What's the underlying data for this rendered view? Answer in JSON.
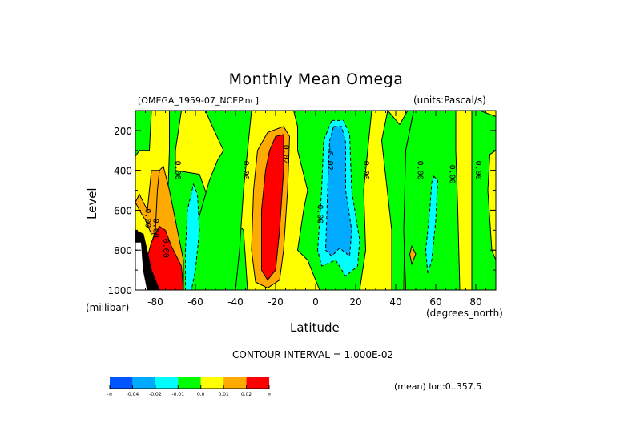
{
  "chart_data": {
    "type": "heatmap",
    "title": "Monthly Mean Omega",
    "subtitle_left": "[OMEGA_1959-07_NCEP.nc]",
    "subtitle_right": "(units:Pascal/s)",
    "xlabel": "Latitude",
    "xunit": "(degrees_north)",
    "ylabel": "Level",
    "yunit": "(millibar)",
    "xlim": [
      -90,
      90
    ],
    "ylim": [
      1000,
      100
    ],
    "x_ticks": [
      -80,
      -60,
      -40,
      -20,
      0,
      20,
      40,
      60,
      80
    ],
    "x_tick_labels": [
      "-80",
      "-60",
      "-40",
      "-20",
      "0",
      "20",
      "40",
      "60",
      "80"
    ],
    "y_ticks": [
      200,
      400,
      600,
      800,
      1000
    ],
    "y_tick_labels": [
      "200",
      "400",
      "600",
      "800",
      "1000"
    ],
    "contour_interval_text": "CONTOUR INTERVAL = 1.000E-02",
    "footnote": "(mean) lon:0..357.5",
    "contour_labels": [
      {
        "text": "0.00",
        "lat": -70,
        "level": 400
      },
      {
        "text": "0.00",
        "lat": -36,
        "level": 400
      },
      {
        "text": "0.02",
        "lat": -16,
        "level": 320
      },
      {
        "text": "-0.02",
        "lat": 6,
        "level": 340
      },
      {
        "text": "0.00",
        "lat": 24,
        "level": 400
      },
      {
        "text": "0.00",
        "lat": 1,
        "level": 620
      },
      {
        "text": "0.00",
        "lat": -85,
        "level": 640
      },
      {
        "text": "0.00",
        "lat": -81,
        "level": 690
      },
      {
        "text": "0.00",
        "lat": -76,
        "level": 790
      },
      {
        "text": "0.00",
        "lat": 51,
        "level": 400
      },
      {
        "text": "0.00",
        "lat": 67,
        "level": 420
      },
      {
        "text": "0.00",
        "lat": 80,
        "level": 400
      }
    ],
    "features": [
      {
        "name": "southern-descent-core",
        "sign": "positive",
        "lat_range": [
          -34,
          -14
        ],
        "level_range": [
          200,
          980
        ],
        "max_band": "0.02+"
      },
      {
        "name": "itcz-ascent-core",
        "sign": "negative",
        "lat_range": [
          2,
          22
        ],
        "level_range": [
          170,
          880
        ],
        "min_band": "-0.04..-0.02"
      },
      {
        "name": "antarctic-slope-descent",
        "sign": "positive",
        "lat_range": [
          -85,
          -65
        ],
        "level_range": [
          550,
          1000
        ],
        "max_band": "0.02+"
      },
      {
        "name": "southern-ascent",
        "sign": "negative",
        "lat_range": [
          -65,
          -58
        ],
        "level_range": [
          470,
          1000
        ],
        "min_band": "-0.02..-0.01"
      },
      {
        "name": "northern-midlat-ascent",
        "sign": "negative",
        "lat_range": [
          56,
          64
        ],
        "level_range": [
          420,
          920
        ],
        "min_band": "-0.02..-0.01"
      }
    ],
    "colorbar": {
      "bins": [
        {
          "label": "-∞",
          "color": "#0055ff"
        },
        {
          "label": "-0.04",
          "color": "#00aaff"
        },
        {
          "label": "-0.02",
          "color": "#00ffff"
        },
        {
          "label": "-0.01",
          "color": "#00ff00"
        },
        {
          "label": "0.0",
          "color": "#ffff00"
        },
        {
          "label": "0.01",
          "color": "#ffaa00"
        },
        {
          "label": "0.02",
          "color": "#ff0000"
        }
      ],
      "tick_labels": [
        "-∞",
        "-0.04",
        "-0.02",
        "-0.01",
        "0.0",
        "0.01",
        "0.02",
        "∞"
      ]
    }
  }
}
